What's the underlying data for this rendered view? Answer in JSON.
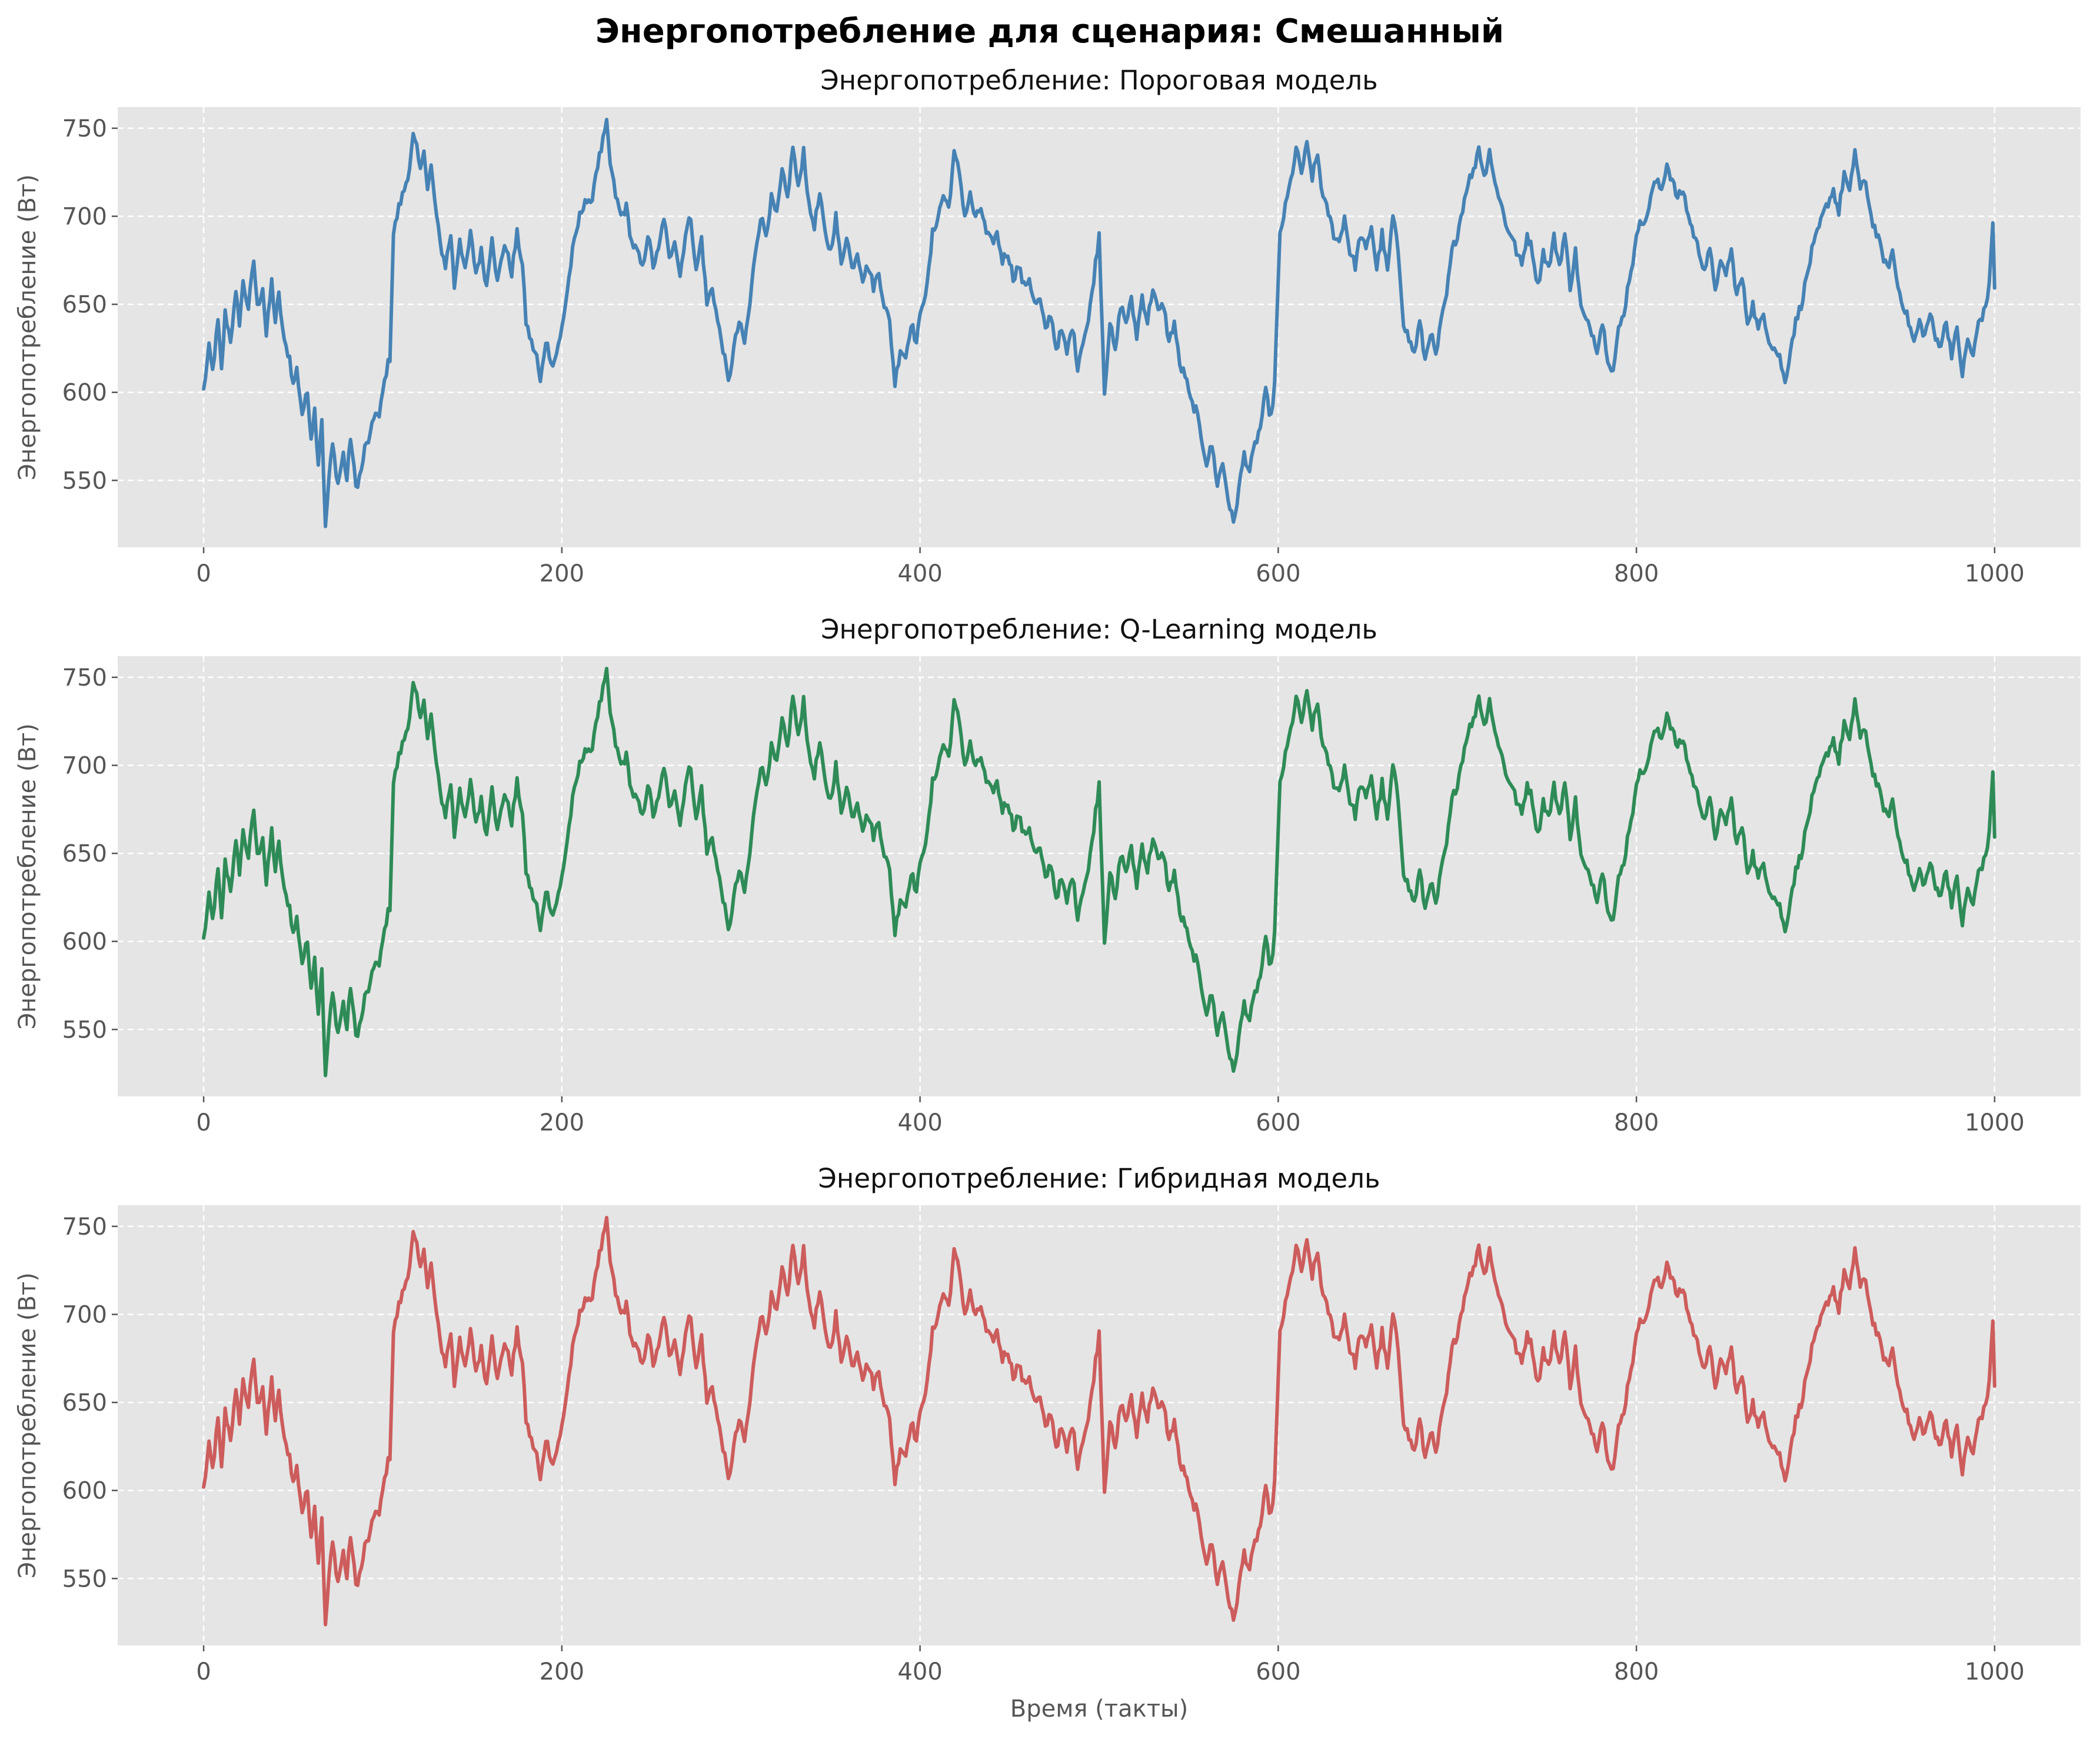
{
  "chart_data": {
    "type": "line",
    "suptitle": "Энергопотребление для сценария: Смешанный",
    "xlabel": "Время (такты)",
    "ylabel": "Энергопотребление (Вт)",
    "xlim": [
      -48,
      1048
    ],
    "ylim": [
      512,
      762
    ],
    "xticks": [
      0,
      200,
      400,
      600,
      800,
      1000
    ],
    "yticks": [
      550,
      600,
      650,
      700,
      750
    ],
    "grid": true,
    "anchors": [
      [
        0,
        601
      ],
      [
        3,
        625
      ],
      [
        5,
        612
      ],
      [
        8,
        640
      ],
      [
        10,
        612
      ],
      [
        12,
        645
      ],
      [
        15,
        630
      ],
      [
        18,
        655
      ],
      [
        20,
        640
      ],
      [
        22,
        662
      ],
      [
        25,
        648
      ],
      [
        28,
        675
      ],
      [
        30,
        648
      ],
      [
        33,
        660
      ],
      [
        35,
        632
      ],
      [
        38,
        663
      ],
      [
        40,
        640
      ],
      [
        42,
        655
      ],
      [
        45,
        628
      ],
      [
        48,
        620
      ],
      [
        50,
        604
      ],
      [
        52,
        613
      ],
      [
        55,
        588
      ],
      [
        58,
        600
      ],
      [
        60,
        575
      ],
      [
        62,
        590
      ],
      [
        64,
        560
      ],
      [
        66,
        585
      ],
      [
        68,
        522
      ],
      [
        70,
        552
      ],
      [
        72,
        570
      ],
      [
        75,
        548
      ],
      [
        78,
        565
      ],
      [
        80,
        550
      ],
      [
        82,
        575
      ],
      [
        85,
        546
      ],
      [
        88,
        555
      ],
      [
        90,
        568
      ],
      [
        93,
        575
      ],
      [
        96,
        590
      ],
      [
        98,
        585
      ],
      [
        100,
        600
      ],
      [
        102,
        612
      ],
      [
        104,
        620
      ],
      [
        106,
        690
      ],
      [
        109,
        705
      ],
      [
        112,
        715
      ],
      [
        115,
        728
      ],
      [
        117,
        745
      ],
      [
        119,
        738
      ],
      [
        121,
        725
      ],
      [
        123,
        740
      ],
      [
        125,
        715
      ],
      [
        127,
        728
      ],
      [
        130,
        700
      ],
      [
        132,
        685
      ],
      [
        135,
        672
      ],
      [
        138,
        690
      ],
      [
        140,
        660
      ],
      [
        143,
        688
      ],
      [
        146,
        668
      ],
      [
        149,
        690
      ],
      [
        152,
        668
      ],
      [
        155,
        680
      ],
      [
        158,
        660
      ],
      [
        161,
        690
      ],
      [
        164,
        662
      ],
      [
        168,
        685
      ],
      [
        172,
        668
      ],
      [
        175,
        690
      ],
      [
        178,
        672
      ],
      [
        180,
        640
      ],
      [
        183,
        628
      ],
      [
        186,
        620
      ],
      [
        188,
        605
      ],
      [
        191,
        630
      ],
      [
        195,
        615
      ],
      [
        199,
        630
      ],
      [
        202,
        650
      ],
      [
        206,
        680
      ],
      [
        210,
        700
      ],
      [
        213,
        710
      ],
      [
        216,
        705
      ],
      [
        219,
        725
      ],
      [
        222,
        738
      ],
      [
        225,
        752
      ],
      [
        227,
        730
      ],
      [
        230,
        712
      ],
      [
        233,
        700
      ],
      [
        236,
        705
      ],
      [
        239,
        685
      ],
      [
        242,
        680
      ],
      [
        245,
        670
      ],
      [
        248,
        690
      ],
      [
        251,
        672
      ],
      [
        254,
        680
      ],
      [
        257,
        700
      ],
      [
        260,
        675
      ],
      [
        263,
        688
      ],
      [
        266,
        666
      ],
      [
        269,
        690
      ],
      [
        272,
        700
      ],
      [
        275,
        668
      ],
      [
        278,
        688
      ],
      [
        281,
        650
      ],
      [
        284,
        660
      ],
      [
        287,
        640
      ],
      [
        290,
        625
      ],
      [
        293,
        605
      ],
      [
        296,
        625
      ],
      [
        299,
        640
      ],
      [
        302,
        628
      ],
      [
        305,
        650
      ],
      [
        308,
        680
      ],
      [
        311,
        700
      ],
      [
        314,
        690
      ],
      [
        317,
        710
      ],
      [
        320,
        700
      ],
      [
        323,
        725
      ],
      [
        326,
        710
      ],
      [
        329,
        740
      ],
      [
        332,
        715
      ],
      [
        335,
        738
      ],
      [
        338,
        705
      ],
      [
        341,
        695
      ],
      [
        344,
        712
      ],
      [
        347,
        690
      ],
      [
        350,
        680
      ],
      [
        353,
        700
      ],
      [
        356,
        672
      ],
      [
        359,
        690
      ],
      [
        362,
        670
      ],
      [
        365,
        680
      ],
      [
        368,
        665
      ],
      [
        371,
        672
      ],
      [
        374,
        660
      ],
      [
        377,
        668
      ],
      [
        380,
        650
      ],
      [
        383,
        640
      ],
      [
        386,
        605
      ],
      [
        389,
        625
      ],
      [
        392,
        620
      ],
      [
        395,
        640
      ],
      [
        398,
        628
      ],
      [
        401,
        650
      ],
      [
        404,
        660
      ],
      [
        407,
        690
      ],
      [
        410,
        700
      ],
      [
        413,
        712
      ],
      [
        416,
        705
      ],
      [
        419,
        735
      ],
      [
        422,
        725
      ],
      [
        425,
        700
      ],
      [
        428,
        712
      ],
      [
        431,
        698
      ],
      [
        434,
        705
      ],
      [
        437,
        690
      ],
      [
        440,
        685
      ],
      [
        443,
        690
      ],
      [
        446,
        675
      ],
      [
        449,
        680
      ],
      [
        452,
        665
      ],
      [
        455,
        672
      ],
      [
        458,
        660
      ],
      [
        461,
        665
      ],
      [
        464,
        650
      ],
      [
        467,
        652
      ],
      [
        470,
        635
      ],
      [
        473,
        645
      ],
      [
        476,
        625
      ],
      [
        479,
        635
      ],
      [
        482,
        622
      ],
      [
        485,
        638
      ],
      [
        488,
        615
      ],
      [
        491,
        630
      ],
      [
        494,
        640
      ],
      [
        497,
        665
      ],
      [
        500,
        690
      ],
      [
        503,
        600
      ],
      [
        506,
        640
      ],
      [
        509,
        622
      ],
      [
        512,
        650
      ],
      [
        515,
        640
      ],
      [
        518,
        652
      ],
      [
        521,
        632
      ],
      [
        524,
        655
      ],
      [
        527,
        640
      ],
      [
        530,
        660
      ],
      [
        533,
        645
      ],
      [
        536,
        650
      ],
      [
        539,
        628
      ],
      [
        542,
        640
      ],
      [
        545,
        615
      ],
      [
        548,
        610
      ],
      [
        551,
        595
      ],
      [
        554,
        590
      ],
      [
        557,
        575
      ],
      [
        560,
        560
      ],
      [
        563,
        570
      ],
      [
        566,
        548
      ],
      [
        569,
        560
      ],
      [
        572,
        540
      ],
      [
        575,
        525
      ],
      [
        578,
        545
      ],
      [
        581,
        565
      ],
      [
        584,
        555
      ],
      [
        587,
        570
      ],
      [
        590,
        580
      ],
      [
        593,
        600
      ],
      [
        596,
        585
      ],
      [
        598,
        605
      ],
      [
        601,
        690
      ],
      [
        604,
        705
      ],
      [
        607,
        720
      ],
      [
        610,
        738
      ],
      [
        613,
        725
      ],
      [
        616,
        740
      ],
      [
        619,
        722
      ],
      [
        622,
        735
      ],
      [
        625,
        710
      ],
      [
        628,
        702
      ],
      [
        631,
        690
      ],
      [
        634,
        685
      ],
      [
        637,
        700
      ],
      [
        640,
        680
      ],
      [
        643,
        672
      ],
      [
        646,
        690
      ],
      [
        649,
        680
      ],
      [
        652,
        695
      ],
      [
        655,
        670
      ],
      [
        658,
        690
      ],
      [
        661,
        668
      ],
      [
        664,
        700
      ],
      [
        667,
        680
      ],
      [
        670,
        640
      ],
      [
        673,
        630
      ],
      [
        676,
        622
      ],
      [
        679,
        640
      ],
      [
        682,
        618
      ],
      [
        685,
        635
      ],
      [
        688,
        620
      ],
      [
        691,
        640
      ],
      [
        694,
        655
      ],
      [
        697,
        680
      ],
      [
        700,
        690
      ],
      [
        703,
        705
      ],
      [
        706,
        720
      ],
      [
        709,
        725
      ],
      [
        712,
        740
      ],
      [
        715,
        722
      ],
      [
        718,
        738
      ],
      [
        721,
        718
      ],
      [
        724,
        710
      ],
      [
        727,
        695
      ],
      [
        730,
        690
      ],
      [
        733,
        680
      ],
      [
        736,
        672
      ],
      [
        739,
        690
      ],
      [
        742,
        680
      ],
      [
        745,
        660
      ],
      [
        748,
        680
      ],
      [
        751,
        670
      ],
      [
        754,
        688
      ],
      [
        757,
        672
      ],
      [
        760,
        690
      ],
      [
        763,
        660
      ],
      [
        766,
        680
      ],
      [
        769,
        648
      ],
      [
        772,
        640
      ],
      [
        775,
        635
      ],
      [
        778,
        625
      ],
      [
        781,
        640
      ],
      [
        784,
        620
      ],
      [
        787,
        612
      ],
      [
        790,
        635
      ],
      [
        793,
        645
      ],
      [
        796,
        665
      ],
      [
        799,
        680
      ],
      [
        802,
        700
      ],
      [
        805,
        695
      ],
      [
        808,
        712
      ],
      [
        811,
        720
      ],
      [
        814,
        715
      ],
      [
        817,
        730
      ],
      [
        820,
        720
      ],
      [
        823,
        710
      ],
      [
        826,
        715
      ],
      [
        829,
        700
      ],
      [
        832,
        690
      ],
      [
        835,
        680
      ],
      [
        838,
        670
      ],
      [
        841,
        680
      ],
      [
        844,
        660
      ],
      [
        847,
        672
      ],
      [
        850,
        668
      ],
      [
        853,
        680
      ],
      [
        856,
        655
      ],
      [
        859,
        665
      ],
      [
        862,
        640
      ],
      [
        865,
        650
      ],
      [
        868,
        635
      ],
      [
        871,
        645
      ],
      [
        874,
        630
      ],
      [
        877,
        625
      ],
      [
        880,
        620
      ],
      [
        883,
        605
      ],
      [
        886,
        625
      ],
      [
        889,
        640
      ],
      [
        892,
        650
      ],
      [
        895,
        665
      ],
      [
        898,
        680
      ],
      [
        901,
        690
      ],
      [
        904,
        700
      ],
      [
        907,
        708
      ],
      [
        910,
        715
      ],
      [
        913,
        702
      ],
      [
        916,
        725
      ],
      [
        919,
        712
      ],
      [
        922,
        738
      ],
      [
        925,
        715
      ],
      [
        928,
        720
      ],
      [
        931,
        700
      ],
      [
        934,
        690
      ],
      [
        937,
        680
      ],
      [
        940,
        670
      ],
      [
        943,
        680
      ],
      [
        946,
        660
      ],
      [
        949,
        650
      ],
      [
        952,
        640
      ],
      [
        955,
        628
      ],
      [
        958,
        640
      ],
      [
        961,
        632
      ],
      [
        964,
        645
      ],
      [
        967,
        630
      ],
      [
        970,
        628
      ],
      [
        973,
        640
      ],
      [
        976,
        622
      ],
      [
        979,
        635
      ],
      [
        982,
        610
      ],
      [
        985,
        630
      ],
      [
        988,
        620
      ],
      [
        991,
        640
      ],
      [
        994,
        645
      ],
      [
        997,
        660
      ],
      [
        999,
        698
      ],
      [
        1000,
        660
      ]
    ],
    "series": [
      {
        "key": "threshold",
        "title": "Энергопотребление: Пороговая модель",
        "color": "#4682b4"
      },
      {
        "key": "qlearning",
        "title": "Энергопотребление: Q-Learning модель",
        "color": "#2e8b57"
      },
      {
        "key": "hybrid",
        "title": "Энергопотребление: Гибридная модель",
        "color": "#cd5c5c"
      }
    ]
  }
}
